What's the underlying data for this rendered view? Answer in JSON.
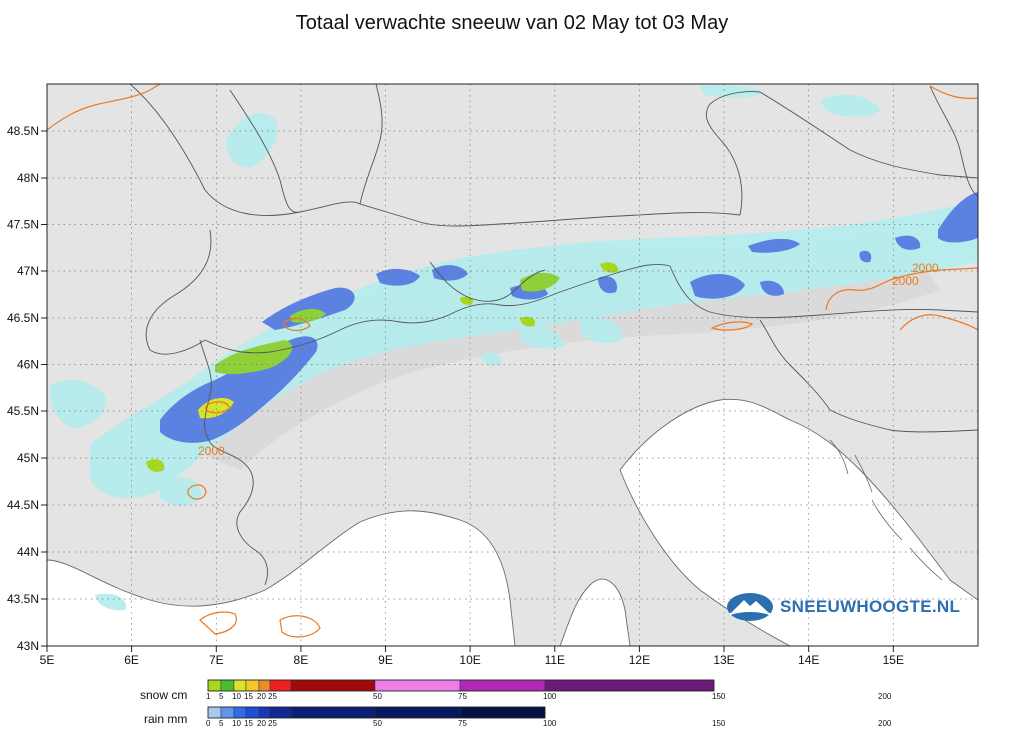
{
  "title": "Totaal verwachte sneeuw van 02 May tot 03 May",
  "map": {
    "lon_labels": [
      "5E",
      "6E",
      "7E",
      "8E",
      "9E",
      "10E",
      "11E",
      "12E",
      "13E",
      "14E",
      "15E"
    ],
    "lat_labels": [
      "48.5N",
      "48N",
      "47.5N",
      "47N",
      "46.5N",
      "46N",
      "45.5N",
      "45N",
      "44.5N",
      "44N",
      "43.5N",
      "43N"
    ],
    "contour_labels": [
      "2000",
      "2000",
      "2000"
    ],
    "colors": {
      "land": "#e4e4e4",
      "sea": "#ffffff",
      "light_rain": "#b6ecec",
      "rain": "#5b82e0",
      "snow_green": "#8fcf3a",
      "contour": "#ec7a22",
      "border": "#555555"
    }
  },
  "logo": {
    "text": "SNEEUWHOOGTE.NL"
  },
  "legend": {
    "snow_label": "snow cm",
    "rain_label": "rain mm",
    "snow_ticks": [
      "1",
      "5",
      "10",
      "15",
      "20",
      "25",
      "50",
      "75",
      "100",
      "150",
      "200"
    ],
    "rain_ticks": [
      "0",
      "5",
      "10",
      "15",
      "20",
      "25",
      "50",
      "75",
      "100",
      "150",
      "200"
    ],
    "snow_colors": [
      "#a6d61f",
      "#4cbd2f",
      "#d8e32a",
      "#f2c72a",
      "#ef8a2b",
      "#ef2020",
      "#a00a0a",
      "#ee7de8",
      "#b128b8",
      "#6a1a7a"
    ],
    "rain_colors": [
      "#a8c8f0",
      "#5f96ec",
      "#2f6ee6",
      "#1f4fd8",
      "#1838b8",
      "#10288f",
      "#0a1f78",
      "#07185e",
      "#051248"
    ]
  }
}
